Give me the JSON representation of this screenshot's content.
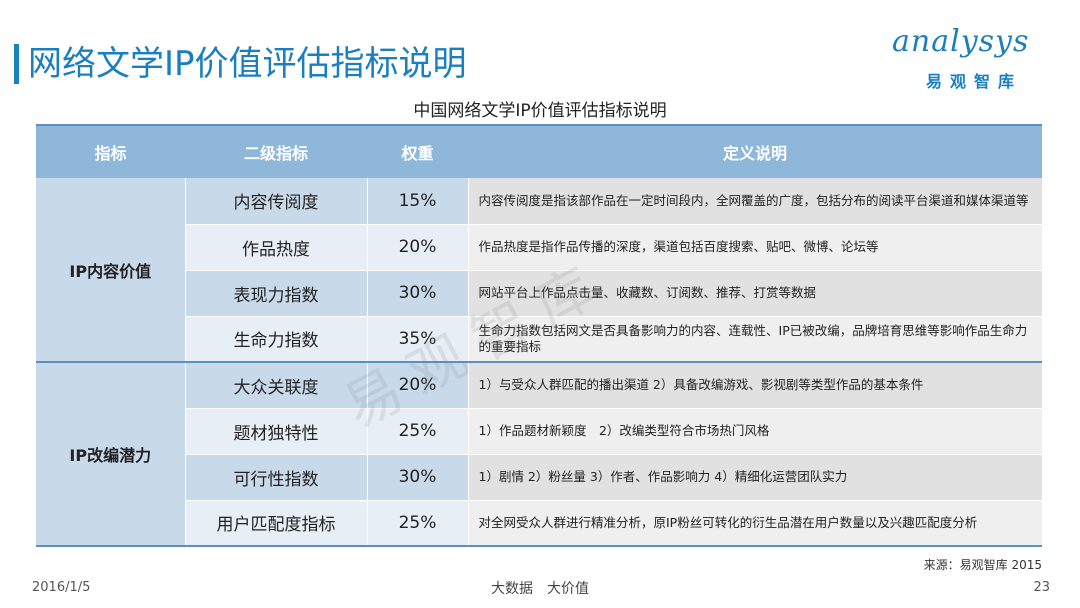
{
  "header": {
    "title": "网络文学IP价值评估指标说明",
    "logo_main": "analysys",
    "logo_sub": "易观智库"
  },
  "table": {
    "title": "中国网络文学IP价值评估指标说明",
    "columns": [
      "指标",
      "二级指标",
      "权重",
      "定义说明"
    ],
    "groups": [
      {
        "category": "IP内容价值",
        "rows": [
          {
            "sub": "内容传阅度",
            "weight": "15%",
            "definition": "内容传阅度是指该部作品在一定时间段内，全网覆盖的广度，包括分布的阅读平台渠道和媒体渠道等"
          },
          {
            "sub": "作品热度",
            "weight": "20%",
            "definition": "作品热度是指作品传播的深度，渠道包括百度搜索、贴吧、微博、论坛等"
          },
          {
            "sub": "表现力指数",
            "weight": "30%",
            "definition": "网站平台上作品点击量、收藏数、订阅数、推荐、打赏等数据"
          },
          {
            "sub": "生命力指数",
            "weight": "35%",
            "definition": "生命力指数包括网文是否具备影响力的内容、连载性、IP已被改编，品牌培育思维等影响作品生命力的重要指标"
          }
        ]
      },
      {
        "category": "IP改编潜力",
        "rows": [
          {
            "sub": "大众关联度",
            "weight": "20%",
            "definition": "1）与受众人群匹配的播出渠道 2）具备改编游戏、影视剧等类型作品的基本条件"
          },
          {
            "sub": "题材独特性",
            "weight": "25%",
            "definition": "1）作品题材新颖度　2）改编类型符合市场热门风格"
          },
          {
            "sub": "可行性指数",
            "weight": "30%",
            "definition": "1）剧情 2）粉丝量 3）作者、作品影响力 4）精细化运营团队实力"
          },
          {
            "sub": "用户匹配度指标",
            "weight": "25%",
            "definition": "对全网受众人群进行精准分析，原IP粉丝可转化的衍生品潜在用户数量以及兴趣匹配度分析"
          }
        ]
      }
    ]
  },
  "source": "来源：易观智库 2015",
  "footer": {
    "date": "2016/1/5",
    "center": "大数据　大价值",
    "page": "23"
  },
  "watermark": "易观智库",
  "colors": {
    "accent": "#1a7fc1",
    "header_bg": "#8fb7da",
    "row_dark": "#c8d9ea",
    "row_light": "#e7eef6"
  }
}
